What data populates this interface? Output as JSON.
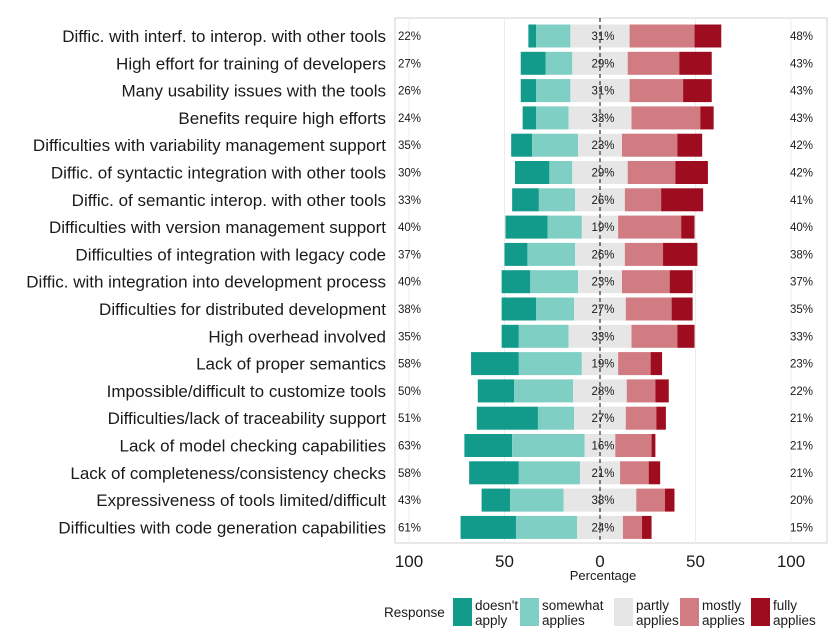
{
  "chart_data": {
    "type": "diverging-stacked-bar",
    "xlabel": "Percentage",
    "xticks": [
      100,
      50,
      0,
      50,
      100
    ],
    "xlim": [
      -100,
      100
    ],
    "legend_title": "Response",
    "legend": [
      {
        "key": "doesnt",
        "label1": "doesn't",
        "label2": "apply",
        "color": "#129a8a"
      },
      {
        "key": "somewhat",
        "label1": "somewhat",
        "label2": "applies",
        "color": "#80cfc4"
      },
      {
        "key": "partly",
        "label1": "partly",
        "label2": "applies",
        "color": "#e6e6e6"
      },
      {
        "key": "mostly",
        "label1": "mostly",
        "label2": "applies",
        "color": "#d17b82"
      },
      {
        "key": "fully",
        "label1": "fully",
        "label2": "applies",
        "color": "#9e0d1f"
      }
    ],
    "series_order": [
      "doesnt",
      "somewhat",
      "partly",
      "mostly",
      "fully"
    ],
    "rows": [
      {
        "label": "Diffic. with interf. to interop. with other tools",
        "left_pct": "22%",
        "mid_pct": "31%",
        "right_pct": "48%",
        "doesnt": 4,
        "somewhat": 18,
        "partly": 31,
        "mostly": 34,
        "fully": 14
      },
      {
        "label": "High effort for training of developers",
        "left_pct": "27%",
        "mid_pct": "29%",
        "right_pct": "43%",
        "doesnt": 13,
        "somewhat": 14,
        "partly": 29,
        "mostly": 27,
        "fully": 17
      },
      {
        "label": "Many usability issues with the tools",
        "left_pct": "26%",
        "mid_pct": "31%",
        "right_pct": "43%",
        "doesnt": 8,
        "somewhat": 18,
        "partly": 31,
        "mostly": 28,
        "fully": 15
      },
      {
        "label": "Benefits require high efforts",
        "left_pct": "24%",
        "mid_pct": "33%",
        "right_pct": "43%",
        "doesnt": 7,
        "somewhat": 17,
        "partly": 33,
        "mostly": 36,
        "fully": 7
      },
      {
        "label": "Difficulties with variability management support",
        "left_pct": "35%",
        "mid_pct": "23%",
        "right_pct": "42%",
        "doesnt": 11,
        "somewhat": 24,
        "partly": 23,
        "mostly": 29,
        "fully": 13
      },
      {
        "label": "Diffic. of syntactic integration with other tools",
        "left_pct": "30%",
        "mid_pct": "29%",
        "right_pct": "42%",
        "doesnt": 18,
        "somewhat": 12,
        "partly": 29,
        "mostly": 25,
        "fully": 17
      },
      {
        "label": "Diffic. of semantic interop. with other tools",
        "left_pct": "33%",
        "mid_pct": "26%",
        "right_pct": "41%",
        "doesnt": 14,
        "somewhat": 19,
        "partly": 26,
        "mostly": 19,
        "fully": 22
      },
      {
        "label": "Difficulties with version management support",
        "left_pct": "40%",
        "mid_pct": "19%",
        "right_pct": "40%",
        "doesnt": 22,
        "somewhat": 18,
        "partly": 19,
        "mostly": 33,
        "fully": 7
      },
      {
        "label": "Difficulties of integration with legacy code",
        "left_pct": "37%",
        "mid_pct": "26%",
        "right_pct": "38%",
        "doesnt": 12,
        "somewhat": 25,
        "partly": 26,
        "mostly": 20,
        "fully": 18
      },
      {
        "label": "Diffic. with integration into development process",
        "left_pct": "40%",
        "mid_pct": "23%",
        "right_pct": "37%",
        "doesnt": 15,
        "somewhat": 25,
        "partly": 23,
        "mostly": 25,
        "fully": 12
      },
      {
        "label": "Difficulties for distributed development",
        "left_pct": "38%",
        "mid_pct": "27%",
        "right_pct": "35%",
        "doesnt": 18,
        "somewhat": 20,
        "partly": 27,
        "mostly": 24,
        "fully": 11
      },
      {
        "label": "High overhead involved",
        "left_pct": "35%",
        "mid_pct": "33%",
        "right_pct": "33%",
        "doesnt": 9,
        "somewhat": 26,
        "partly": 33,
        "mostly": 24,
        "fully": 9
      },
      {
        "label": "Lack of proper semantics",
        "left_pct": "58%",
        "mid_pct": "19%",
        "right_pct": "23%",
        "doesnt": 25,
        "somewhat": 33,
        "partly": 19,
        "mostly": 17,
        "fully": 6
      },
      {
        "label": "Impossible/difficult to customize tools",
        "left_pct": "50%",
        "mid_pct": "28%",
        "right_pct": "22%",
        "doesnt": 19,
        "somewhat": 31,
        "partly": 28,
        "mostly": 15,
        "fully": 7
      },
      {
        "label": "Difficulties/lack of traceability support",
        "left_pct": "51%",
        "mid_pct": "27%",
        "right_pct": "21%",
        "doesnt": 32,
        "somewhat": 19,
        "partly": 27,
        "mostly": 16,
        "fully": 5
      },
      {
        "label": "Lack of model checking capabilities",
        "left_pct": "63%",
        "mid_pct": "16%",
        "right_pct": "21%",
        "doesnt": 25,
        "somewhat": 38,
        "partly": 16,
        "mostly": 19,
        "fully": 2
      },
      {
        "label": "Lack of completeness/consistency checks",
        "left_pct": "58%",
        "mid_pct": "21%",
        "right_pct": "21%",
        "doesnt": 26,
        "somewhat": 32,
        "partly": 21,
        "mostly": 15,
        "fully": 6
      },
      {
        "label": "Expressiveness of tools limited/difficult",
        "left_pct": "43%",
        "mid_pct": "38%",
        "right_pct": "20%",
        "doesnt": 15,
        "somewhat": 28,
        "partly": 38,
        "mostly": 15,
        "fully": 5
      },
      {
        "label": "Difficulties with code generation capabilities",
        "left_pct": "61%",
        "mid_pct": "24%",
        "right_pct": "15%",
        "doesnt": 29,
        "somewhat": 32,
        "partly": 24,
        "mostly": 10,
        "fully": 5
      }
    ]
  }
}
